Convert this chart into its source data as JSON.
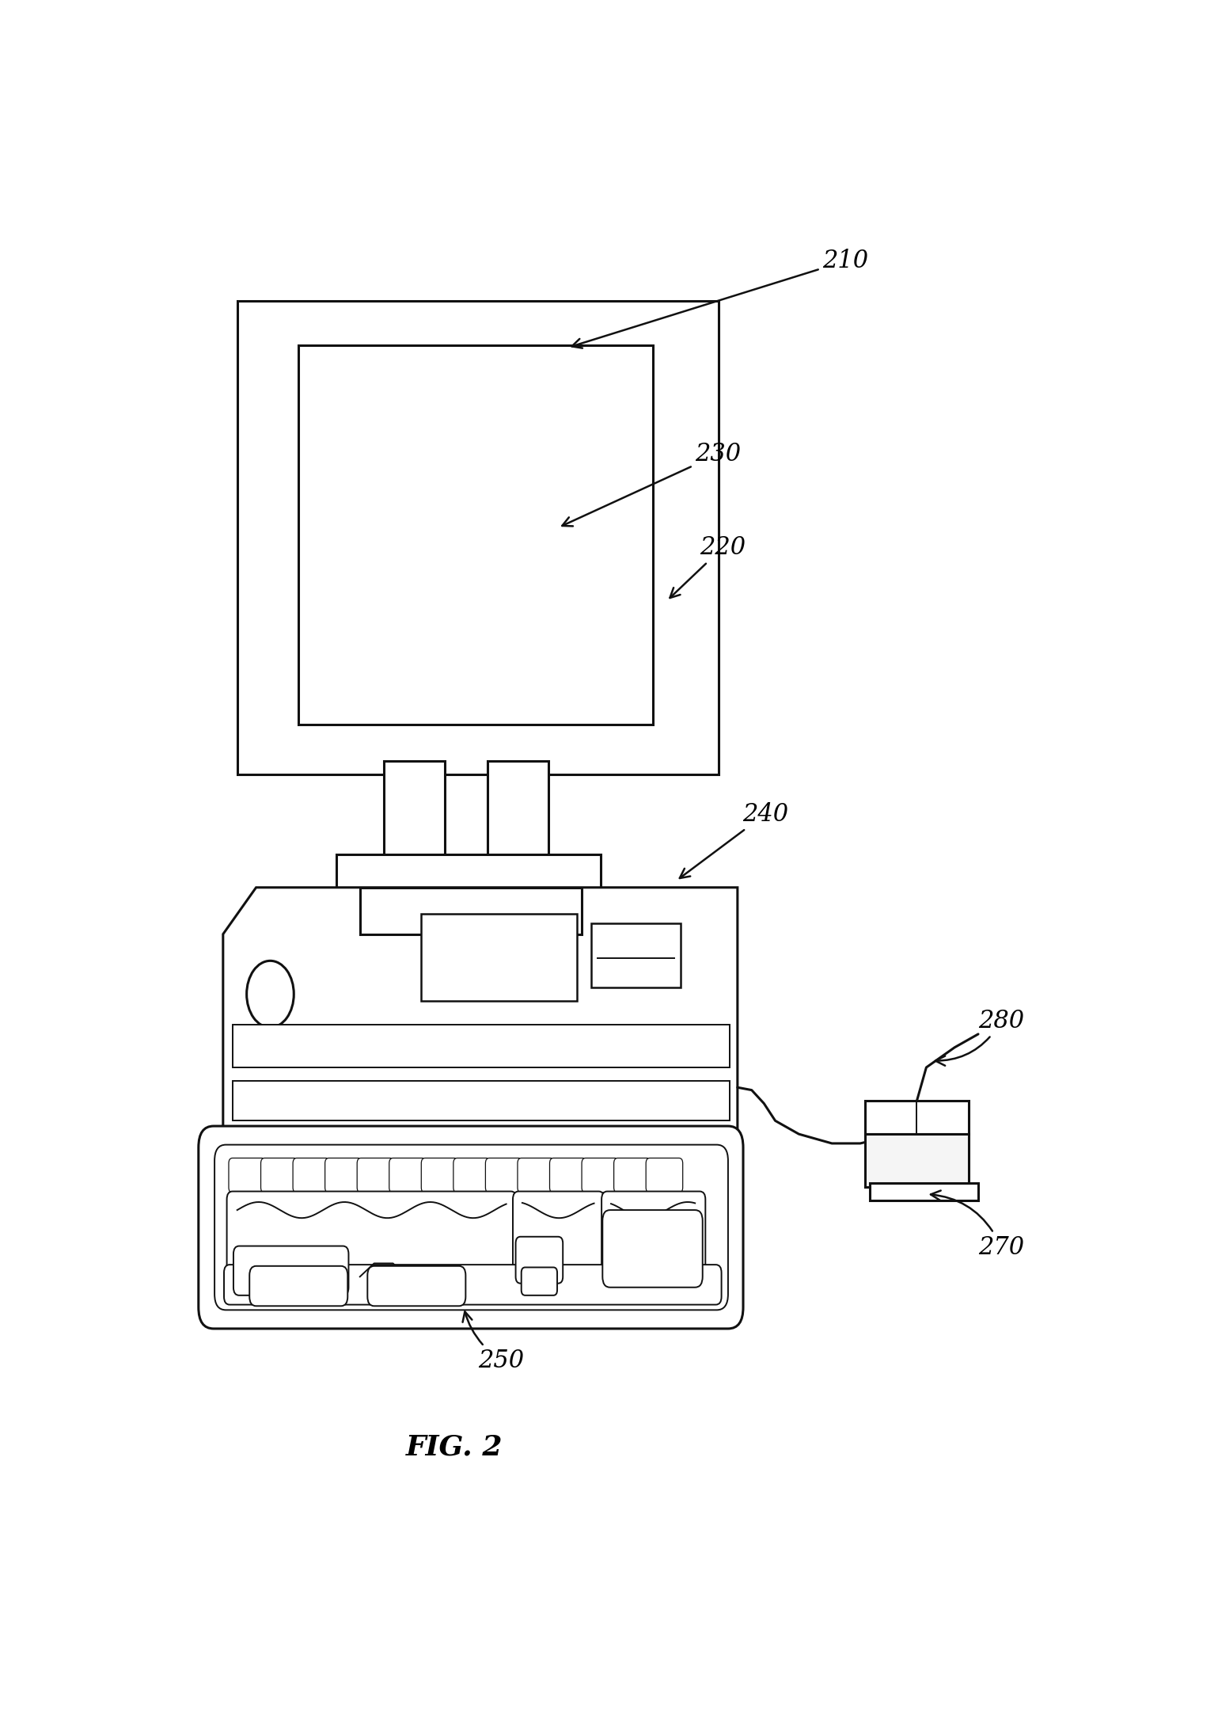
{
  "title": "FIG. 2",
  "background_color": "#ffffff",
  "figsize": [
    15.39,
    21.86
  ],
  "dpi": 100,
  "label_fontsize": 22,
  "title_fontsize": 26
}
